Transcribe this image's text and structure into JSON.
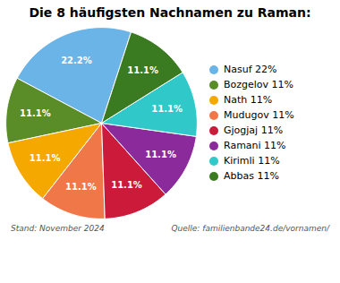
{
  "chart_data": {
    "type": "pie",
    "title": "Die 8 häufigsten Nachnamen zu Raman:",
    "categories": [
      "Nasuf 22%",
      "Bozgelov 11%",
      "Nath 11%",
      "Mudugov 11%",
      "Gjogjaj 11%",
      "Ramani 11%",
      "Kirimli 11%",
      "Abbas 11%"
    ],
    "values": [
      22.2,
      11.1,
      11.1,
      11.1,
      11.1,
      11.1,
      11.1,
      11.1
    ],
    "value_labels": [
      "22.2%",
      "11.1%",
      "11.1%",
      "11.1%",
      "11.1%",
      "11.1%",
      "11.1%",
      "11.1%"
    ],
    "colors": [
      "#6ab4e8",
      "#5a8c28",
      "#f5a800",
      "#f07848",
      "#cc1a3a",
      "#8b2a9a",
      "#30c8c8",
      "#3a7a20"
    ],
    "data_labels": true,
    "legend": "right",
    "annotations": [
      "Stand: November 2024",
      "Quelle: familienbande24.de/vornamen/"
    ]
  }
}
